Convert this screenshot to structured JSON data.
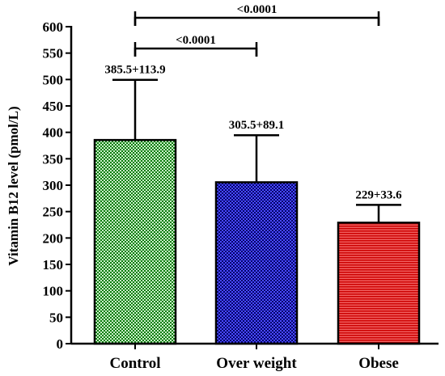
{
  "chart_data": {
    "type": "bar",
    "ylabel": "Vitamin B12 level (pmol/L)",
    "ylim": [
      0,
      600
    ],
    "yticks": [
      0,
      50,
      100,
      150,
      200,
      250,
      300,
      350,
      400,
      450,
      500,
      550,
      600
    ],
    "categories": [
      "Control",
      "Over weight",
      "Obese"
    ],
    "values": [
      385.5,
      305.5,
      229
    ],
    "errors": [
      113.9,
      89.1,
      33.6
    ],
    "data_labels": [
      "385.5+113.9",
      "305.5+89.1",
      "229+33.6"
    ],
    "colors": [
      "#2f9e2f",
      "#1414c8",
      "#e01818"
    ],
    "patterns": [
      "checker",
      "checker",
      "stripes"
    ],
    "significance": [
      {
        "from": 0,
        "to": 2,
        "label": "<0.0001",
        "y": 640
      },
      {
        "from": 0,
        "to": 1,
        "label": "<0.0001",
        "y": 570
      }
    ]
  }
}
